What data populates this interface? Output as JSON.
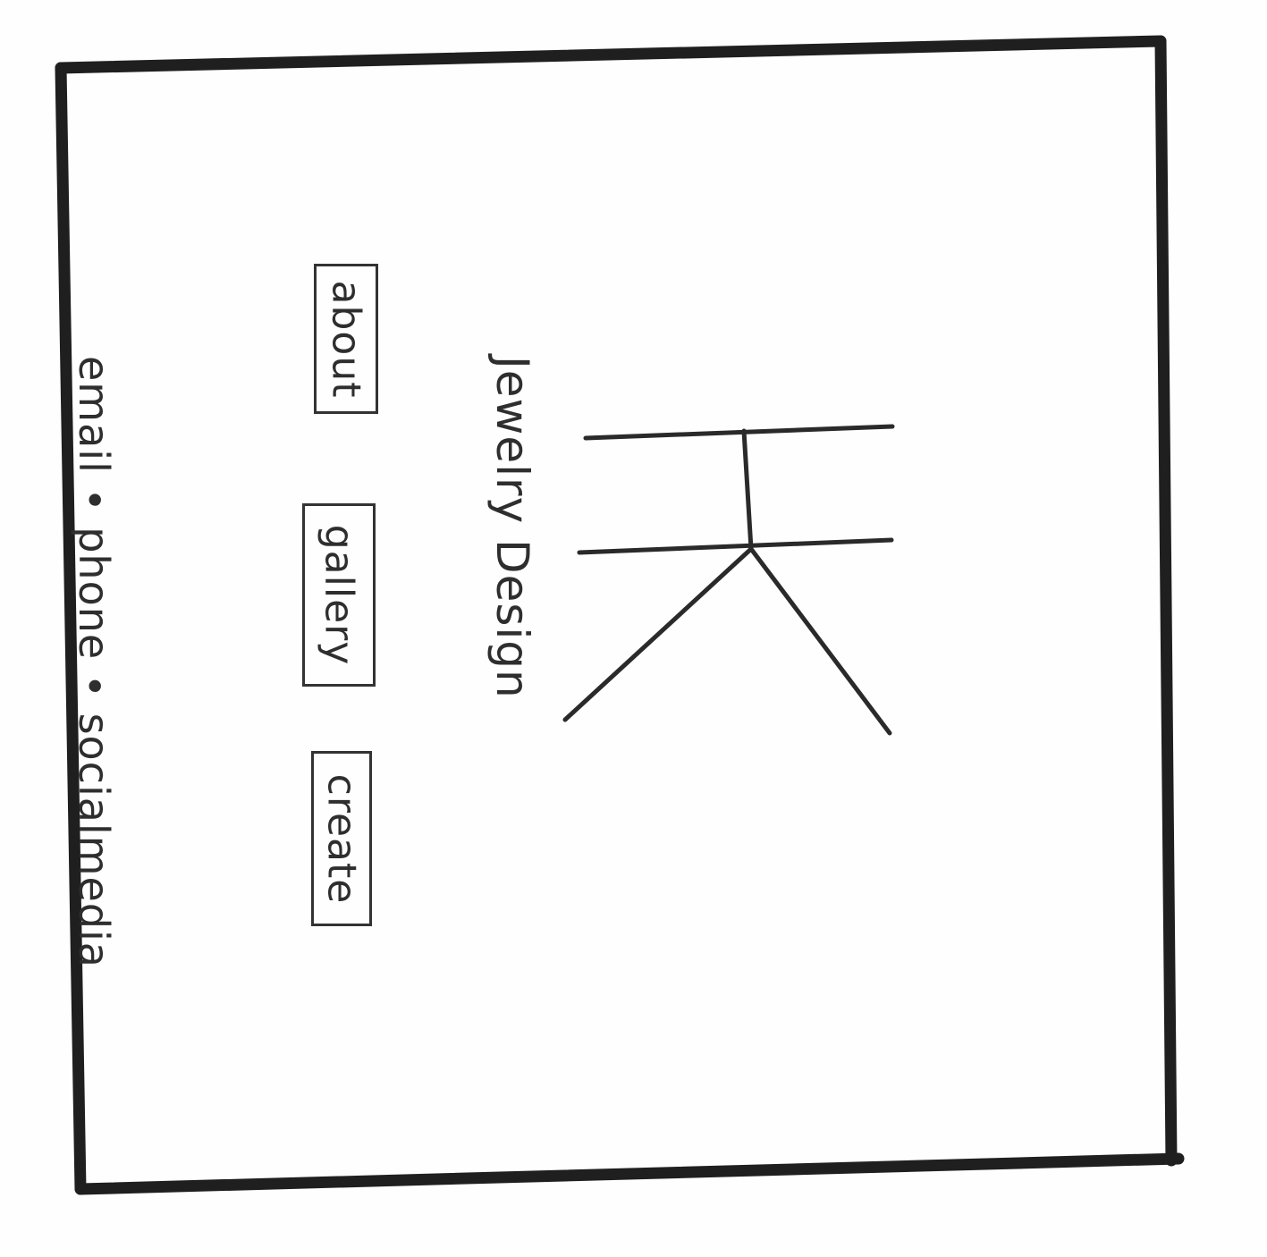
{
  "site": {
    "title": "Jewelry Design",
    "logo_icon": "necklace-pendant-icon"
  },
  "nav": {
    "items": [
      {
        "label": "about"
      },
      {
        "label": "gallery"
      },
      {
        "label": "create"
      }
    ]
  },
  "footer": {
    "contact_line": "email • phone • socialmedia"
  },
  "colors": {
    "ink": "#2b2b2b",
    "paper": "#fefefe"
  }
}
